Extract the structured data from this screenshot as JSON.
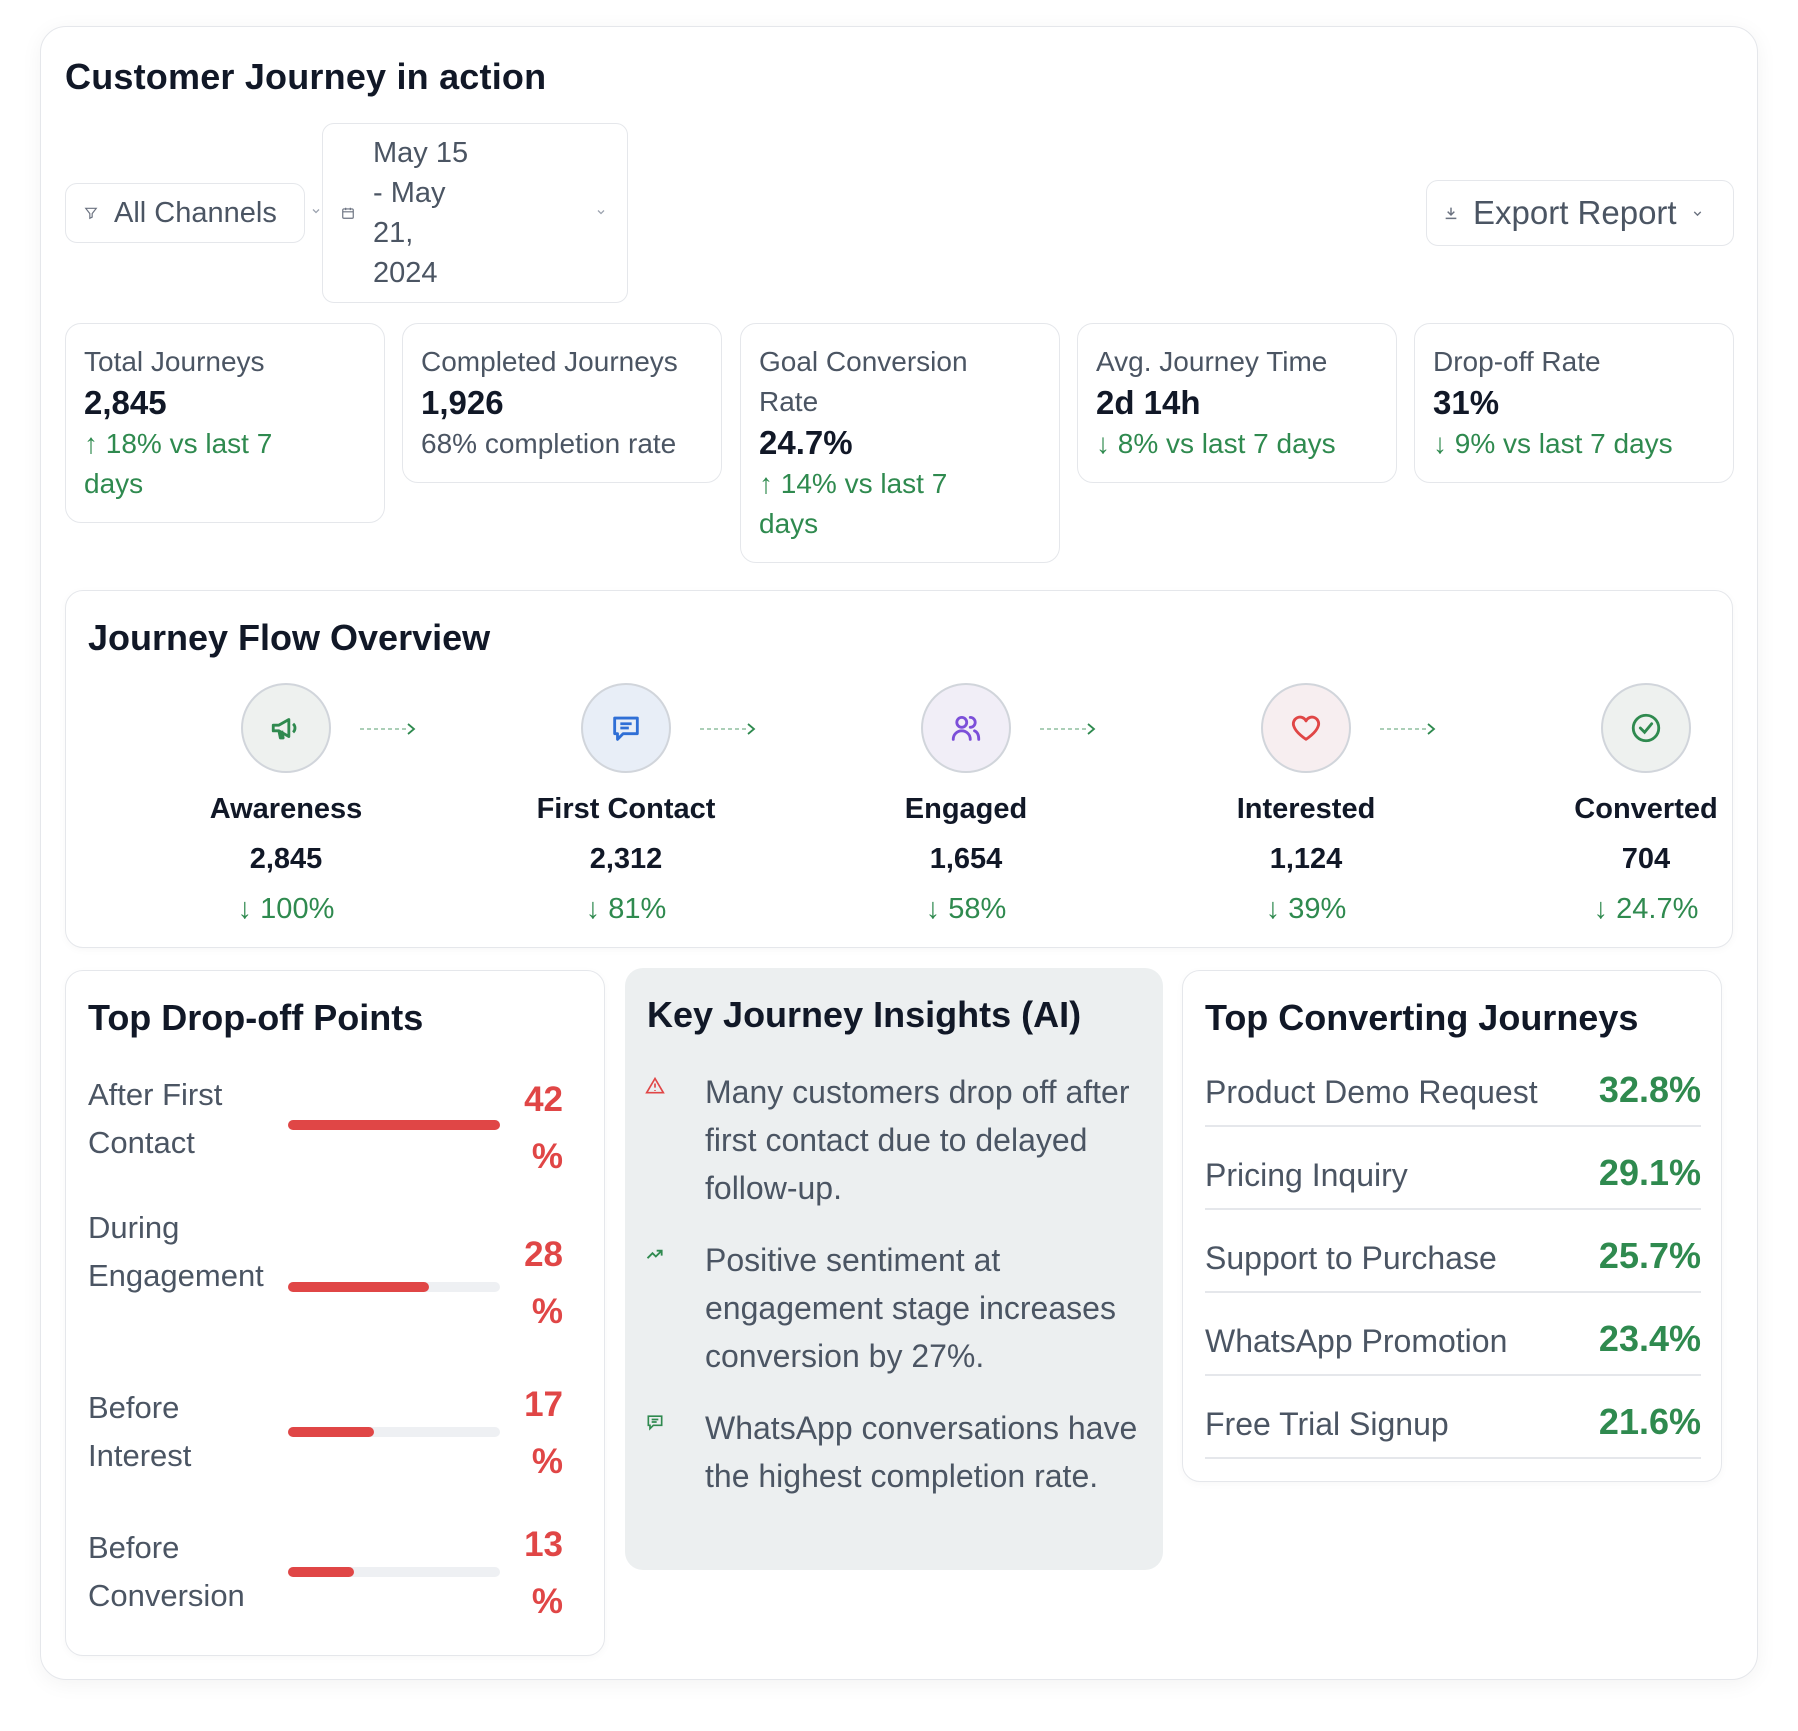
{
  "header": {
    "title": "Customer Journey in action",
    "channel_filter": "All Channels",
    "date_range_lines": [
      "May 15",
      "- May",
      "21,",
      "2024"
    ],
    "export_label": "Export Report"
  },
  "metrics": [
    {
      "label_lines": [
        "Total Journeys"
      ],
      "value": "2,845",
      "trend_lines": [
        "↑ 18% vs last 7",
        "days"
      ],
      "sub": ""
    },
    {
      "label_lines": [
        "Completed Journeys"
      ],
      "value": "1,926",
      "trend_lines": [],
      "sub": "68% completion rate"
    },
    {
      "label_lines": [
        "Goal Conversion",
        "Rate"
      ],
      "value": "24.7%",
      "trend_lines": [
        "↑ 14% vs last 7",
        "days"
      ],
      "sub": ""
    },
    {
      "label_lines": [
        "Avg. Journey Time"
      ],
      "value": "2d 14h",
      "trend_lines": [
        "↓ 8% vs last 7 days"
      ],
      "sub": ""
    },
    {
      "label_lines": [
        "Drop-off Rate"
      ],
      "value": "31%",
      "trend_lines": [
        "↓ 9% vs last 7 days"
      ],
      "sub": ""
    }
  ],
  "flow": {
    "title": "Journey Flow Overview",
    "stages": [
      {
        "name": "Awareness",
        "count": "2,845",
        "pct": "↓ 100%",
        "icon": "megaphone-icon",
        "color": "#2f8a4f",
        "bg": "#eef1ef"
      },
      {
        "name": "First Contact",
        "count": "2,312",
        "pct": "↓ 81%",
        "icon": "chat-icon",
        "color": "#2f6fd6",
        "bg": "#e8eef7"
      },
      {
        "name": "Engaged",
        "count": "1,654",
        "pct": "↓ 58%",
        "icon": "users-icon",
        "color": "#7c4fd9",
        "bg": "#f1eef7"
      },
      {
        "name": "Interested",
        "count": "1,124",
        "pct": "↓ 39%",
        "icon": "heart-icon",
        "color": "#e04646",
        "bg": "#f7eef0"
      },
      {
        "name": "Converted",
        "count": "704",
        "pct": "↓ 24.7%",
        "icon": "check-circle-icon",
        "color": "#2f8a4f",
        "bg": "#eef1ef"
      }
    ]
  },
  "dropoff": {
    "title": "Top Drop-off Points",
    "items": [
      {
        "label": "After First Contact",
        "pct_num": "42",
        "pct_sym": "%",
        "fraction": 1.0
      },
      {
        "label": "During Engagement",
        "pct_num": "28",
        "pct_sym": "%",
        "fraction": 0.667
      },
      {
        "label": "Before Interest",
        "pct_num": "17",
        "pct_sym": "%",
        "fraction": 0.405
      },
      {
        "label": "Before Conversion",
        "pct_num": "13",
        "pct_sym": "%",
        "fraction": 0.31
      }
    ]
  },
  "insights": {
    "title": "Key Journey Insights (AI)",
    "items": [
      {
        "text": "Many customers drop off after first contact due to delayed follow-up.",
        "icon": "warning-icon"
      },
      {
        "text": "Positive sentiment at engagement stage increases conversion by 27%.",
        "icon": "trend-up-icon"
      },
      {
        "text": "WhatsApp conversations have the highest completion rate.",
        "icon": "message-icon"
      }
    ]
  },
  "converting": {
    "title": "Top Converting Journeys",
    "items": [
      {
        "name": "Product Demo Request",
        "value": "32.8%"
      },
      {
        "name": "Pricing Inquiry",
        "value": "29.1%"
      },
      {
        "name": "Support to Purchase",
        "value": "25.7%"
      },
      {
        "name": "WhatsApp Promotion",
        "value": "23.4%"
      },
      {
        "name": "Free Trial Signup",
        "value": "21.6%"
      }
    ]
  }
}
